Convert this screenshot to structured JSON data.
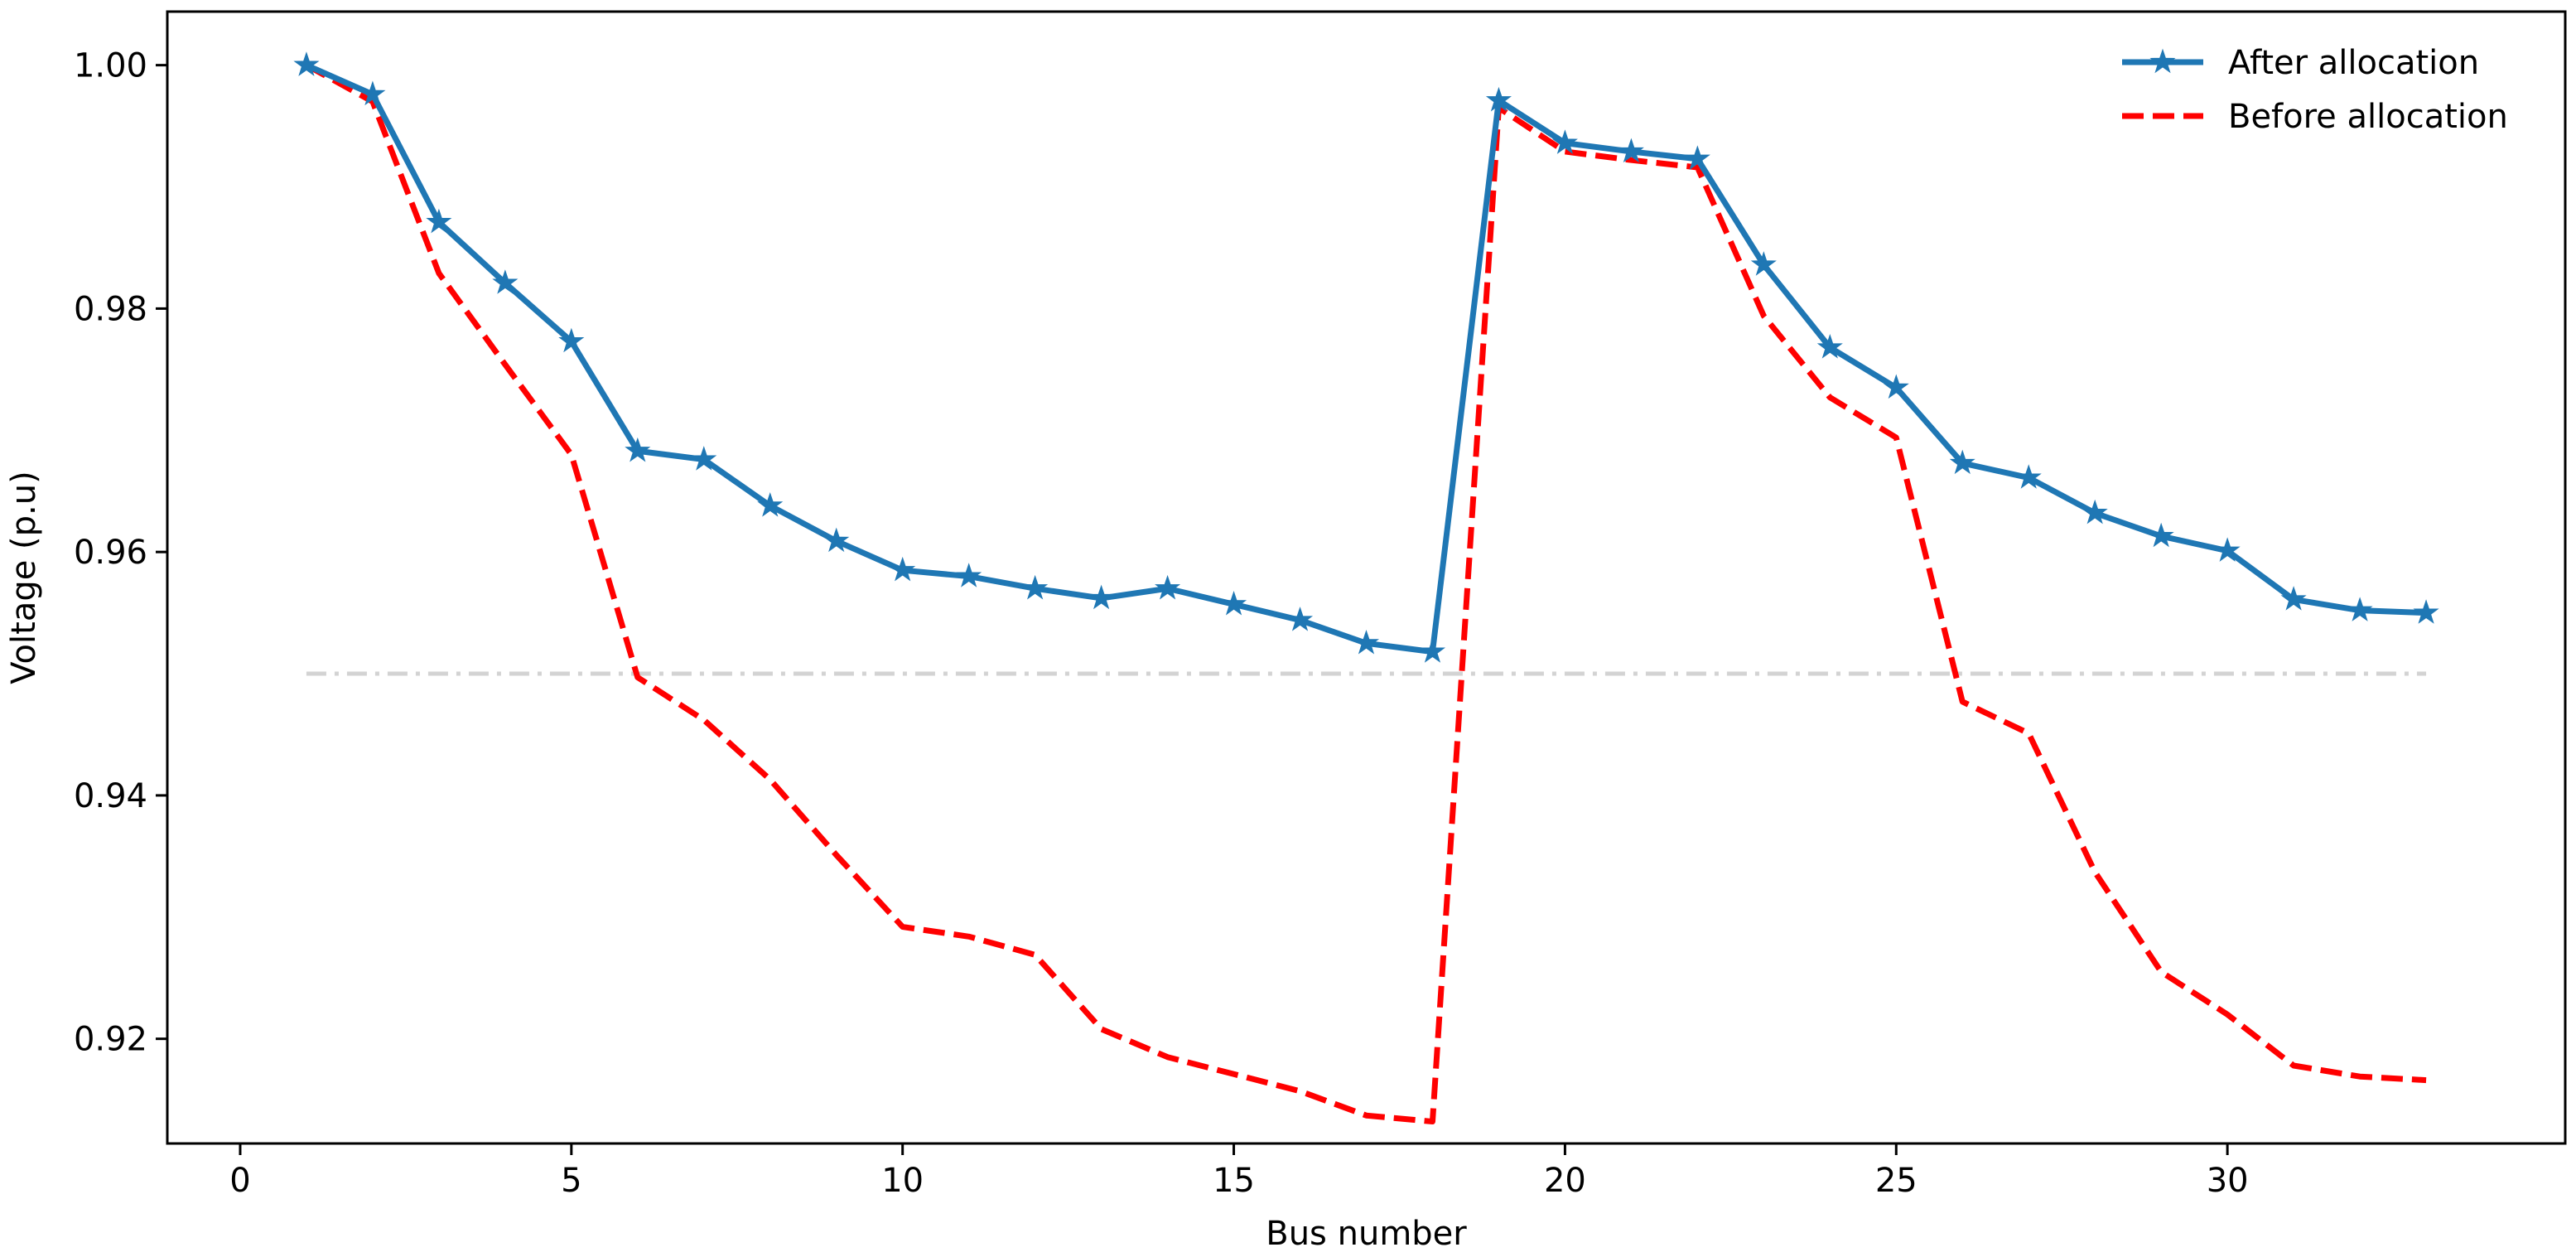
{
  "chart_data": {
    "type": "line",
    "title": "",
    "xlabel": "Bus number",
    "ylabel": "Voltage (p.u)",
    "xlim": [
      -1.1,
      35.1
    ],
    "ylim": [
      0.9114,
      1.0044
    ],
    "xticks": [
      0,
      5,
      10,
      15,
      20,
      25,
      30
    ],
    "yticks": [
      0.92,
      0.94,
      0.96,
      0.98,
      1.0
    ],
    "xtick_labels": [
      "0",
      "5",
      "10",
      "15",
      "20",
      "25",
      "30"
    ],
    "ytick_labels": [
      "0.92",
      "0.94",
      "0.96",
      "0.98",
      "1.00"
    ],
    "grid": false,
    "legend_position": "top-right",
    "x": [
      1,
      2,
      3,
      4,
      5,
      6,
      7,
      8,
      9,
      10,
      11,
      12,
      13,
      14,
      15,
      16,
      17,
      18,
      19,
      20,
      21,
      22,
      23,
      24,
      25,
      26,
      27,
      28,
      29,
      30,
      31,
      32,
      33
    ],
    "series": [
      {
        "name": "After allocation",
        "color": "#1f77b4",
        "style": "solid",
        "marker": "star",
        "values": [
          1.0,
          0.9976,
          0.9871,
          0.9821,
          0.9773,
          0.9683,
          0.9676,
          0.9638,
          0.9609,
          0.9585,
          0.958,
          0.957,
          0.9562,
          0.957,
          0.9557,
          0.9544,
          0.9525,
          0.9518,
          0.9971,
          0.9936,
          0.9929,
          0.9923,
          0.9836,
          0.9768,
          0.9735,
          0.9673,
          0.9661,
          0.9632,
          0.9613,
          0.9601,
          0.9561,
          0.9552,
          0.955
        ]
      },
      {
        "name": "Before allocation",
        "color": "#ff0000",
        "style": "dashed",
        "marker": "none",
        "values": [
          1.0,
          0.997,
          0.9829,
          0.9754,
          0.968,
          0.9497,
          0.9462,
          0.9413,
          0.9351,
          0.9292,
          0.9284,
          0.9269,
          0.9208,
          0.9185,
          0.9171,
          0.9157,
          0.9137,
          0.9132,
          0.9965,
          0.9929,
          0.9922,
          0.9916,
          0.9794,
          0.9727,
          0.9694,
          0.9477,
          0.9451,
          0.9337,
          0.9255,
          0.922,
          0.9178,
          0.9169,
          0.9166
        ]
      }
    ],
    "reference_line": {
      "y": 0.95,
      "color": "#d3d3d3",
      "style": "dashdot"
    }
  }
}
